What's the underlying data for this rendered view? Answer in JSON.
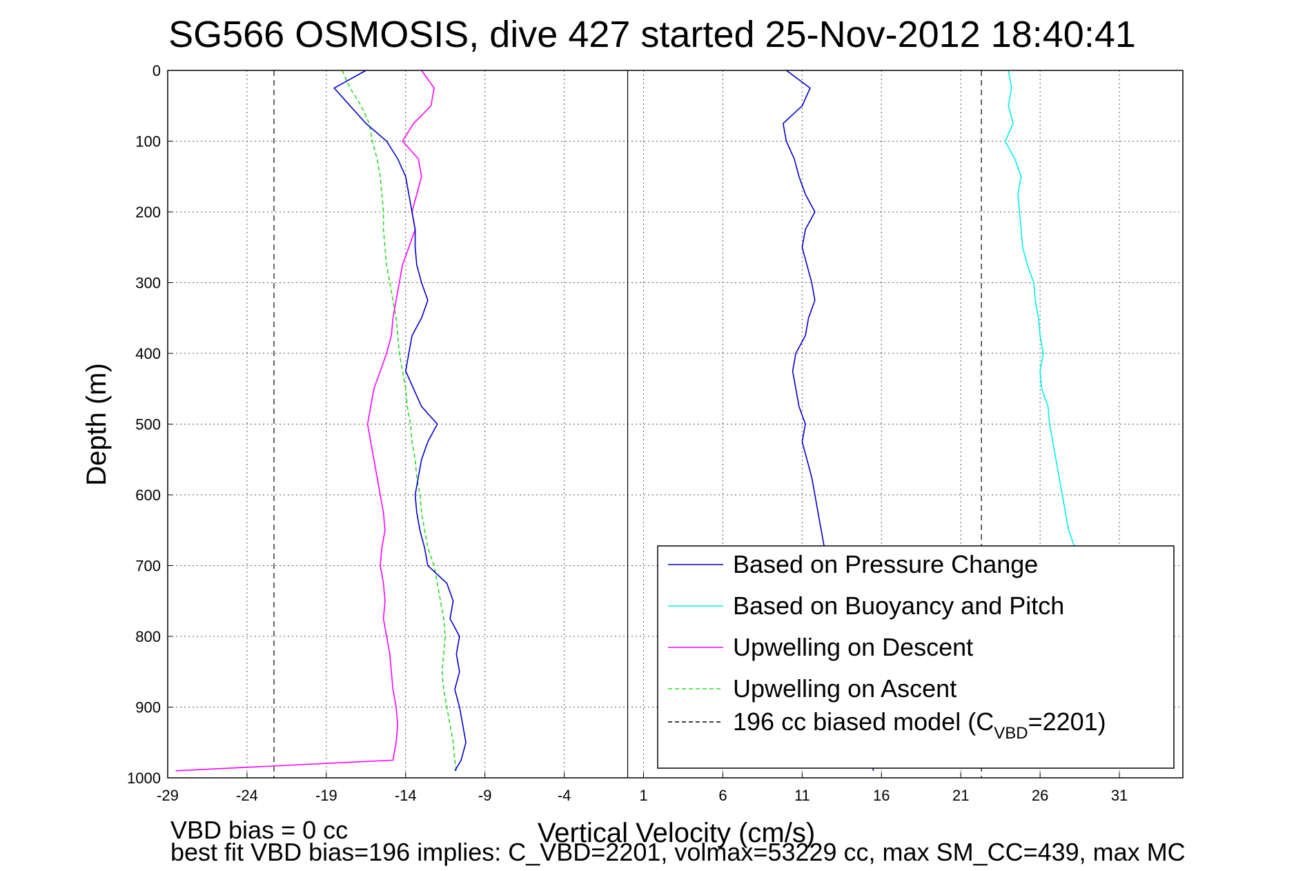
{
  "chart_data": {
    "type": "line",
    "title": "SG566 OSMOSIS, dive 427 started 25-Nov-2012 18:40:41",
    "xlabel": "Vertical Velocity (cm/s)",
    "ylabel": "Depth (m)",
    "xlim": [
      -29,
      35
    ],
    "ylim": [
      0,
      1000
    ],
    "y_reversed": true,
    "x_ticks": [
      -29,
      -24,
      -19,
      -14,
      -9,
      -4,
      1,
      6,
      11,
      16,
      21,
      26,
      31
    ],
    "y_ticks": [
      0,
      100,
      200,
      300,
      400,
      500,
      600,
      700,
      800,
      900,
      1000
    ],
    "grid": true,
    "legend_position": "bottom-right",
    "zero_line_x": 0,
    "series": [
      {
        "name": "Based on Pressure Change",
        "color": "#0000cc",
        "style": "solid",
        "depth": [
          0,
          25,
          50,
          75,
          100,
          125,
          150,
          175,
          200,
          225,
          250,
          275,
          300,
          325,
          350,
          375,
          400,
          425,
          450,
          475,
          500,
          525,
          550,
          575,
          600,
          625,
          650,
          675,
          700,
          725,
          750,
          775,
          800,
          825,
          850,
          875,
          900,
          925,
          950,
          975,
          990
        ],
        "descent_velocity": [
          -16.5,
          -18.5,
          -17.5,
          -16.5,
          -15.2,
          -14.5,
          -14.0,
          -13.8,
          -13.6,
          -13.4,
          -13.4,
          -13.3,
          -13.0,
          -12.6,
          -13.0,
          -13.6,
          -13.8,
          -14.0,
          -13.5,
          -13.0,
          -12.0,
          -12.6,
          -13.0,
          -13.2,
          -13.4,
          -13.3,
          -13.1,
          -12.8,
          -12.6,
          -11.4,
          -11.0,
          -11.2,
          -10.6,
          -10.8,
          -10.6,
          -10.9,
          -10.6,
          -10.4,
          -10.2,
          -10.5,
          -10.9
        ],
        "ascent_velocity": [
          10.0,
          11.5,
          11.0,
          9.8,
          10.0,
          10.5,
          10.8,
          11.2,
          11.8,
          11.2,
          11.0,
          11.3,
          11.6,
          11.8,
          11.4,
          11.2,
          10.6,
          10.4,
          10.6,
          10.8,
          11.2,
          11.0,
          11.3,
          11.6,
          11.8,
          12.0,
          12.2,
          12.4,
          12.6,
          12.9,
          13.2,
          13.5,
          13.8,
          14.0,
          14.3,
          14.5,
          14.7,
          14.9,
          15.1,
          15.3,
          15.5
        ]
      },
      {
        "name": "Based on Buoyancy and Pitch",
        "color": "#00eeee",
        "style": "solid",
        "depth": [
          0,
          25,
          50,
          75,
          100,
          125,
          150,
          175,
          200,
          225,
          250,
          275,
          300,
          325,
          350,
          375,
          400,
          425,
          450,
          475,
          500,
          525,
          550,
          575,
          600,
          625,
          650,
          675,
          700
        ],
        "ascent_velocity": [
          24.0,
          24.2,
          24.0,
          24.3,
          23.8,
          24.4,
          24.8,
          24.6,
          24.7,
          24.8,
          24.9,
          25.2,
          25.6,
          25.7,
          25.9,
          26.0,
          26.2,
          26.0,
          26.1,
          26.5,
          26.6,
          26.8,
          27.0,
          27.2,
          27.4,
          27.6,
          27.8,
          28.2,
          28.6
        ]
      },
      {
        "name": "Upwelling on Descent",
        "color": "#ff00ff",
        "style": "solid",
        "depth": [
          0,
          25,
          50,
          75,
          100,
          125,
          150,
          175,
          200,
          225,
          250,
          275,
          300,
          325,
          350,
          375,
          400,
          425,
          450,
          475,
          500,
          525,
          550,
          575,
          600,
          625,
          650,
          675,
          700,
          725,
          750,
          775,
          800,
          825,
          850,
          875,
          900,
          925,
          950,
          975,
          990
        ],
        "values": [
          -13.0,
          -12.2,
          -12.4,
          -13.5,
          -14.2,
          -13.2,
          -13.0,
          -13.3,
          -13.6,
          -13.4,
          -13.8,
          -14.2,
          -14.4,
          -14.6,
          -14.8,
          -14.9,
          -15.2,
          -15.6,
          -16.0,
          -16.2,
          -16.4,
          -16.2,
          -16.0,
          -15.8,
          -15.6,
          -15.4,
          -15.3,
          -15.5,
          -15.6,
          -15.4,
          -15.3,
          -15.4,
          -15.2,
          -15.0,
          -14.9,
          -14.8,
          -14.6,
          -14.5,
          -14.6,
          -14.8,
          -28.5
        ]
      },
      {
        "name": "Upwelling on Ascent",
        "color": "#22dd22",
        "style": "dashed",
        "depth": [
          0,
          25,
          50,
          75,
          100,
          125,
          150,
          175,
          200,
          225,
          250,
          275,
          300,
          325,
          350,
          375,
          400,
          425,
          450,
          475,
          500,
          525,
          550,
          575,
          600,
          625,
          650,
          675,
          700,
          725,
          750,
          775,
          800,
          825,
          850,
          875,
          900,
          925,
          950,
          975,
          990
        ],
        "values": [
          -18.0,
          -17.5,
          -16.8,
          -16.3,
          -16.1,
          -15.8,
          -15.6,
          -15.5,
          -15.4,
          -15.4,
          -15.3,
          -15.2,
          -15.0,
          -14.8,
          -14.6,
          -14.5,
          -14.4,
          -14.2,
          -14.0,
          -13.9,
          -13.7,
          -13.6,
          -13.4,
          -13.3,
          -13.1,
          -13.0,
          -12.8,
          -12.6,
          -12.2,
          -12.0,
          -11.8,
          -11.6,
          -11.5,
          -11.6,
          -11.7,
          -11.6,
          -11.4,
          -11.2,
          -11.0,
          -10.9,
          -10.8
        ]
      },
      {
        "name": "196 cc biased model (C",
        "name_sub": "VBD",
        "name_suffix": "=2201)",
        "color": "#000000",
        "style": "dashed",
        "x_positions": [
          -22.3,
          22.3
        ]
      }
    ],
    "footer": {
      "line1": "VBD bias = 0 cc",
      "line2": "best fit VBD bias=196 implies: C_VBD=2201, volmax=53229 cc, max SM_CC=439, max MC"
    }
  }
}
